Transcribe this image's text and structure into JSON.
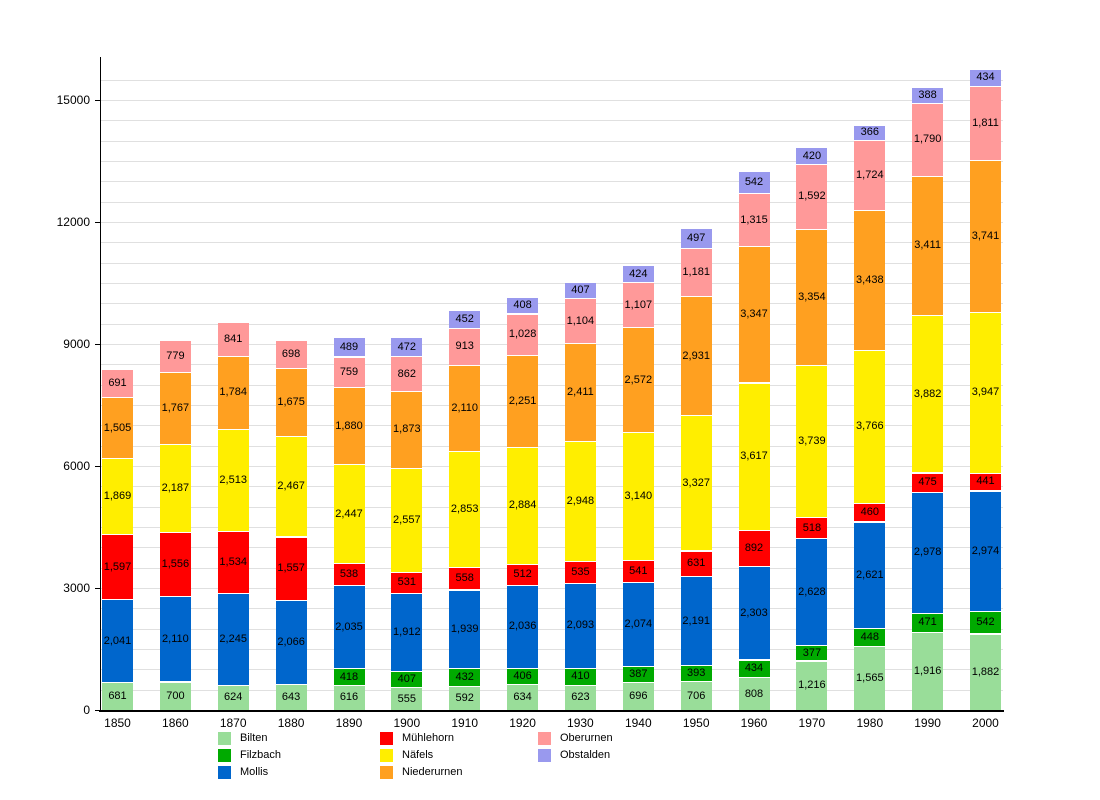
{
  "chart_data": {
    "type": "bar",
    "stacked": true,
    "title": "",
    "xlabel": "",
    "ylabel": "",
    "categories": [
      "1850",
      "1860",
      "1870",
      "1880",
      "1890",
      "1900",
      "1910",
      "1920",
      "1930",
      "1940",
      "1950",
      "1960",
      "1970",
      "1980",
      "1990",
      "2000"
    ],
    "series": [
      {
        "name": "Bilten",
        "color": "#99dd99",
        "values": [
          681,
          700,
          624,
          643,
          616,
          555,
          592,
          634,
          623,
          696,
          706,
          808,
          1216,
          1565,
          1916,
          1882
        ]
      },
      {
        "name": "Filzbach",
        "color": "#00aa00",
        "values": [
          null,
          null,
          null,
          null,
          418,
          407,
          432,
          406,
          410,
          387,
          393,
          434,
          377,
          448,
          471,
          542
        ]
      },
      {
        "name": "Mollis",
        "color": "#0066cc",
        "values": [
          2041,
          2110,
          2245,
          2066,
          2035,
          1912,
          1939,
          2036,
          2093,
          2074,
          2191,
          2303,
          2628,
          2621,
          2978,
          2974
        ]
      },
      {
        "name": "Mühlehorn",
        "color": "#ff0000",
        "values": [
          1597,
          1556,
          1534,
          1557,
          538,
          531,
          558,
          512,
          535,
          541,
          631,
          892,
          518,
          460,
          475,
          441
        ]
      },
      {
        "name": "Näfels",
        "color": "#ffee00",
        "values": [
          1869,
          2187,
          2513,
          2467,
          2447,
          2557,
          2853,
          2884,
          2948,
          3140,
          3327,
          3617,
          3739,
          3766,
          3882,
          3947
        ]
      },
      {
        "name": "Niederurnen",
        "color": "#ffa020",
        "values": [
          1505,
          1767,
          1784,
          1675,
          1880,
          1873,
          2110,
          2251,
          2411,
          2572,
          2931,
          3347,
          3354,
          3438,
          3411,
          3741
        ]
      },
      {
        "name": "Oberurnen",
        "color": "#ff9999",
        "values": [
          691,
          779,
          841,
          698,
          759,
          862,
          913,
          1028,
          1104,
          1107,
          1181,
          1315,
          1592,
          1724,
          1790,
          1811
        ]
      },
      {
        "name": "Obstalden",
        "color": "#9999ee",
        "values": [
          null,
          null,
          null,
          null,
          489,
          472,
          452,
          408,
          407,
          424,
          497,
          542,
          420,
          366,
          388,
          434
        ]
      }
    ],
    "y_axis": {
      "tick_labels": [
        "0",
        "3000",
        "6000",
        "9000",
        "12000",
        "15000"
      ],
      "ticks": [
        0,
        3000,
        6000,
        9000,
        12000,
        15000
      ],
      "minor_step": 500,
      "minor_max": 15500,
      "ylim": [
        0,
        16000
      ]
    },
    "grid": true,
    "legend_position": "bottom",
    "legend_columns": [
      [
        "Bilten",
        "Filzbach",
        "Mollis"
      ],
      [
        "Mühlehorn",
        "Näfels",
        "Niederurnen"
      ],
      [
        "Oberurnen",
        "Obstalden"
      ]
    ]
  },
  "style": {
    "grid_color": "#e0e0e0",
    "axis_color": "#000000",
    "label_color": "#000000",
    "background": "#ffffff"
  }
}
